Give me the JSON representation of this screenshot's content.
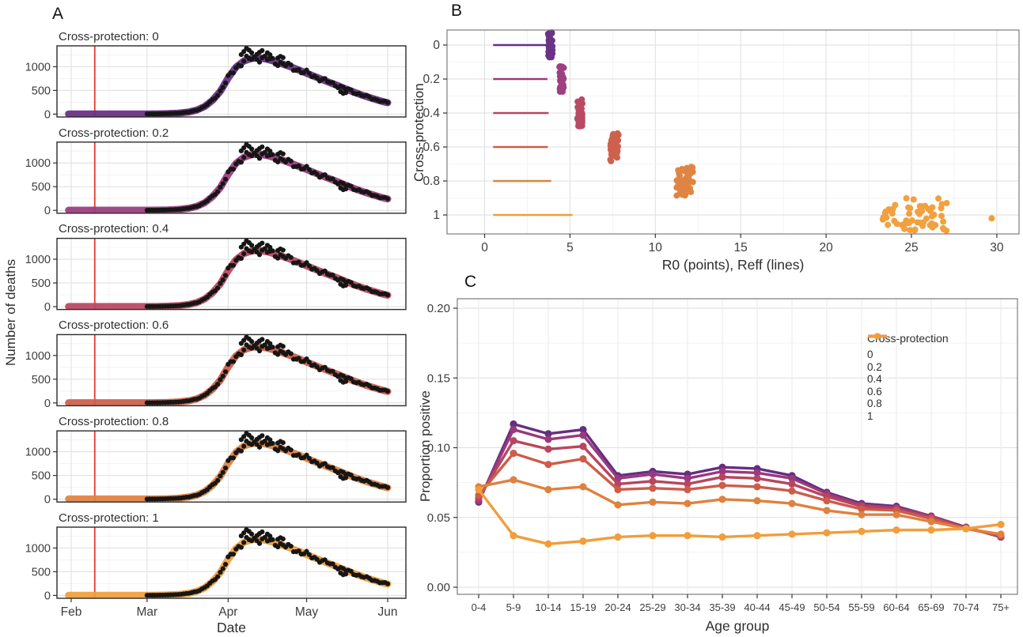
{
  "panels": {
    "a_label": "A",
    "b_label": "B",
    "c_label": "C"
  },
  "colors": {
    "palette": [
      "#672d82",
      "#993a7c",
      "#b8455f",
      "#cd5c49",
      "#e0813e",
      "#f19e3a"
    ],
    "intervention_line": "#e8392f",
    "observed_points": "#161616",
    "grid_major": "#dedede",
    "grid_minor": "#f0f0f0",
    "panel_border_a": "#2b2b2b",
    "panel_border_bc": "#7d7d7d",
    "tick_text": "#3d3d3d",
    "tick_mark": "#333333"
  },
  "chart_data": [
    {
      "id": "A",
      "type": "line",
      "description": "Observed daily deaths (points) with model fits (colored bands), faceted by cross-protection level",
      "facet_titles": [
        "Cross-protection: 0",
        "Cross-protection: 0.2",
        "Cross-protection: 0.4",
        "Cross-protection: 0.6",
        "Cross-protection: 0.8",
        "Cross-protection: 1"
      ],
      "xlabel": "Date",
      "ylabel": "Number of deaths",
      "x_tick_labels": [
        "Feb",
        "Mar",
        "Apr",
        "May",
        "Jun"
      ],
      "x_tick_days": [
        0,
        29,
        60,
        90,
        121
      ],
      "x_minor_days": [
        14.5,
        44.5,
        75,
        105.5
      ],
      "y_ticks": [
        0,
        500,
        1000
      ],
      "y_minor": [
        250,
        750,
        1250
      ],
      "ylim": [
        -60,
        1440
      ],
      "intervention_day": 9,
      "model_curve_day_value": [
        [
          -1,
          3
        ],
        [
          14,
          3
        ],
        [
          29,
          3
        ],
        [
          33,
          5
        ],
        [
          37,
          10
        ],
        [
          41,
          20
        ],
        [
          45,
          45
        ],
        [
          48,
          85
        ],
        [
          51,
          160
        ],
        [
          54,
          290
        ],
        [
          57,
          480
        ],
        [
          60,
          760
        ],
        [
          63,
          990
        ],
        [
          66,
          1120
        ],
        [
          69,
          1175
        ],
        [
          72,
          1185
        ],
        [
          75,
          1155
        ],
        [
          78,
          1110
        ],
        [
          81,
          1055
        ],
        [
          84,
          995
        ],
        [
          87,
          930
        ],
        [
          90,
          862
        ],
        [
          93,
          795
        ],
        [
          96,
          728
        ],
        [
          99,
          662
        ],
        [
          102,
          600
        ],
        [
          105,
          530
        ],
        [
          108,
          465
        ],
        [
          111,
          405
        ],
        [
          114,
          350
        ],
        [
          117,
          300
        ],
        [
          120,
          252
        ],
        [
          121,
          242
        ]
      ],
      "observed_day_range": [
        29,
        121
      ],
      "observed_extra_points": [
        [
          65,
          1255
        ],
        [
          66,
          1320
        ],
        [
          67,
          1388
        ],
        [
          68,
          1350
        ],
        [
          69,
          1295
        ],
        [
          71,
          1262
        ],
        [
          72,
          1305
        ],
        [
          73,
          1340
        ],
        [
          75,
          1295
        ],
        [
          76,
          1252
        ],
        [
          79,
          1185
        ],
        [
          80,
          1218
        ],
        [
          81,
          1192
        ],
        [
          103,
          472
        ],
        [
          104,
          436
        ],
        [
          105,
          452
        ]
      ]
    },
    {
      "id": "B",
      "type": "scatter",
      "description": "R0 posterior samples (point clusters) and Reff (horizontal lines) by cross-protection level",
      "xlabel": "R0 (points), Reff (lines)",
      "ylabel": "Cross-protection",
      "x_ticks": [
        0,
        5,
        10,
        15,
        20,
        25,
        30
      ],
      "x_minor": [
        2.5,
        7.5,
        12.5,
        17.5,
        22.5,
        27.5
      ],
      "y_tick_labels": [
        "0",
        "0.2",
        "0.4",
        "0.6",
        "0.8",
        "1"
      ],
      "y_tick_values": [
        0,
        0.2,
        0.4,
        0.6,
        0.8,
        1
      ],
      "y_minor": [
        0.1,
        0.3,
        0.5,
        0.7,
        0.9
      ],
      "xlim": [
        -2.2,
        31.3
      ],
      "reff_lines": [
        {
          "cp": 0,
          "x0": 0.5,
          "x1": 3.7
        },
        {
          "cp": 0.2,
          "x0": 0.5,
          "x1": 3.68
        },
        {
          "cp": 0.4,
          "x0": 0.5,
          "x1": 3.75
        },
        {
          "cp": 0.6,
          "x0": 0.5,
          "x1": 3.7
        },
        {
          "cp": 0.8,
          "x0": 0.5,
          "x1": 3.9
        },
        {
          "cp": 1,
          "x0": 0.5,
          "x1": 5.15
        }
      ],
      "r0_clusters": [
        {
          "cp": 0,
          "x_min": 3.72,
          "x_max": 3.98,
          "y_jitter": 0.075,
          "n": 42
        },
        {
          "cp": 0.2,
          "x_min": 4.38,
          "x_max": 4.64,
          "y_jitter": 0.075,
          "n": 42
        },
        {
          "cp": 0.4,
          "x_min": 5.42,
          "x_max": 5.74,
          "y_jitter": 0.08,
          "n": 42
        },
        {
          "cp": 0.6,
          "x_min": 7.35,
          "x_max": 7.85,
          "y_jitter": 0.085,
          "n": 45
        },
        {
          "cp": 0.8,
          "x_min": 11.25,
          "x_max": 12.2,
          "y_jitter": 0.09,
          "n": 48
        },
        {
          "cp": 1,
          "x_min": 23.3,
          "x_max": 27.1,
          "y_jitter": 0.1,
          "n": 60
        }
      ],
      "outlier_point": {
        "cp": 1,
        "x": 29.7
      }
    },
    {
      "id": "C",
      "type": "line",
      "description": "Proportion seropositive by age group for each cross-protection level",
      "xlabel": "Age group",
      "ylabel": "Proportion positive",
      "categories": [
        "0-4",
        "5-9",
        "10-14",
        "15-19",
        "20-24",
        "25-29",
        "30-34",
        "35-39",
        "40-44",
        "45-49",
        "50-54",
        "55-59",
        "60-64",
        "65-69",
        "70-74",
        "75+"
      ],
      "y_tick_labels": [
        "0.00",
        "0.05",
        "0.10",
        "0.15",
        "0.20"
      ],
      "y_tick_values": [
        0,
        0.05,
        0.1,
        0.15,
        0.2
      ],
      "y_minor": [
        0.025,
        0.075,
        0.125,
        0.175
      ],
      "legend_title": "Cross-protection",
      "series": [
        {
          "name": "0",
          "values": [
            0.061,
            0.117,
            0.11,
            0.113,
            0.08,
            0.083,
            0.081,
            0.086,
            0.085,
            0.08,
            0.068,
            0.06,
            0.058,
            0.051,
            0.043,
            0.036
          ]
        },
        {
          "name": "0.2",
          "values": [
            0.062,
            0.113,
            0.106,
            0.109,
            0.078,
            0.081,
            0.078,
            0.083,
            0.082,
            0.078,
            0.067,
            0.059,
            0.057,
            0.051,
            0.043,
            0.036
          ]
        },
        {
          "name": "0.4",
          "values": [
            0.064,
            0.105,
            0.099,
            0.101,
            0.074,
            0.076,
            0.074,
            0.079,
            0.078,
            0.074,
            0.065,
            0.058,
            0.056,
            0.05,
            0.042,
            0.037
          ]
        },
        {
          "name": "0.6",
          "values": [
            0.066,
            0.096,
            0.088,
            0.092,
            0.07,
            0.071,
            0.07,
            0.073,
            0.072,
            0.069,
            0.062,
            0.056,
            0.055,
            0.049,
            0.042,
            0.037
          ]
        },
        {
          "name": "0.8",
          "values": [
            0.072,
            0.077,
            0.07,
            0.072,
            0.059,
            0.061,
            0.06,
            0.063,
            0.062,
            0.06,
            0.055,
            0.052,
            0.052,
            0.047,
            0.042,
            0.038
          ]
        },
        {
          "name": "1",
          "values": [
            0.07,
            0.037,
            0.031,
            0.033,
            0.036,
            0.037,
            0.037,
            0.036,
            0.037,
            0.038,
            0.039,
            0.04,
            0.041,
            0.041,
            0.042,
            0.045
          ]
        }
      ]
    }
  ]
}
